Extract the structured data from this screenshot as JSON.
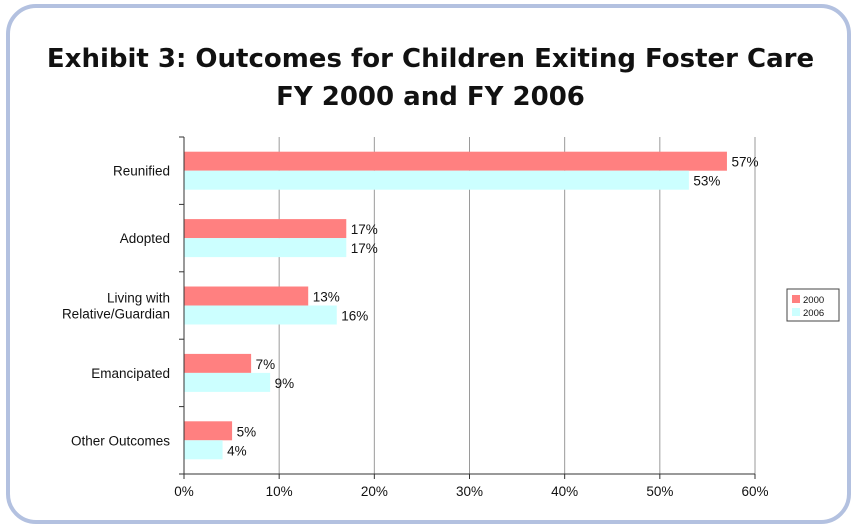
{
  "chart_data": {
    "type": "bar",
    "orientation": "horizontal",
    "title": "Exhibit 3: Outcomes for Children Exiting Foster Care",
    "subtitle": "FY 2000 and FY 2006",
    "categories": [
      "Reunified",
      "Adopted",
      "Living with Relative/Guardian",
      "Emancipated",
      "Other Outcomes"
    ],
    "category_lines": [
      [
        "Reunified"
      ],
      [
        "Adopted"
      ],
      [
        "Living with",
        "Relative/Guardian"
      ],
      [
        "Emancipated"
      ],
      [
        "Other Outcomes"
      ]
    ],
    "series": [
      {
        "name": "2000",
        "color": "#ff8080",
        "values": [
          57,
          17,
          13,
          7,
          5
        ],
        "labels": [
          "57%",
          "17%",
          "13%",
          "7%",
          "5%"
        ]
      },
      {
        "name": "2006",
        "color": "#ccffff",
        "values": [
          53,
          17,
          16,
          9,
          4
        ],
        "labels": [
          "53%",
          "17%",
          "16%",
          "9%",
          "4%"
        ]
      }
    ],
    "xlim": [
      0,
      60
    ],
    "xticks": [
      0,
      10,
      20,
      30,
      40,
      50,
      60
    ],
    "xtick_labels": [
      "0%",
      "10%",
      "20%",
      "30%",
      "40%",
      "50%",
      "60%"
    ],
    "grid": true,
    "legend_position": "right"
  }
}
